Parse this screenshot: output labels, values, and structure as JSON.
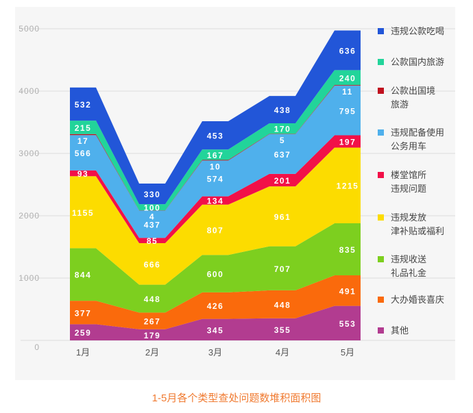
{
  "chart_data": {
    "type": "area",
    "stacked": true,
    "title": "1-5月各个类型查处问题数堆积面积图",
    "categories": [
      "1月",
      "2月",
      "3月",
      "4月",
      "5月"
    ],
    "ylim": [
      0,
      5000
    ],
    "yticks": [
      0,
      1000,
      2000,
      3000,
      4000,
      5000
    ],
    "grid": true,
    "legend_position": "right",
    "series": [
      {
        "name": "其他",
        "color": "#b23c90",
        "values": [
          259,
          179,
          345,
          355,
          553
        ]
      },
      {
        "name": "大办婚丧喜庆",
        "color": "#fa6a0c",
        "values": [
          377,
          267,
          426,
          448,
          491
        ]
      },
      {
        "name": "违规收送\n礼品礼金",
        "color": "#7dcf1f",
        "values": [
          844,
          448,
          600,
          707,
          835
        ]
      },
      {
        "name": "违规发放\n津补贴或福利",
        "color": "#fcdc00",
        "values": [
          1155,
          666,
          807,
          961,
          1215
        ]
      },
      {
        "name": "楼堂馆所\n违规问题",
        "color": "#f21048",
        "values": [
          93,
          85,
          134,
          201,
          197
        ]
      },
      {
        "name": "违规配备使用\n公务用车",
        "color": "#4fb0ec",
        "values": [
          566,
          437,
          574,
          637,
          795
        ]
      },
      {
        "name": "公款出国境\n旅游",
        "color": "#c0101e",
        "values": [
          17,
          4,
          10,
          5,
          11
        ]
      },
      {
        "name": "公款国内旅游",
        "color": "#22d49a",
        "values": [
          215,
          100,
          167,
          170,
          240
        ]
      },
      {
        "name": "违规公款吃喝",
        "color": "#2256d8",
        "values": [
          532,
          330,
          453,
          438,
          636
        ]
      }
    ]
  }
}
